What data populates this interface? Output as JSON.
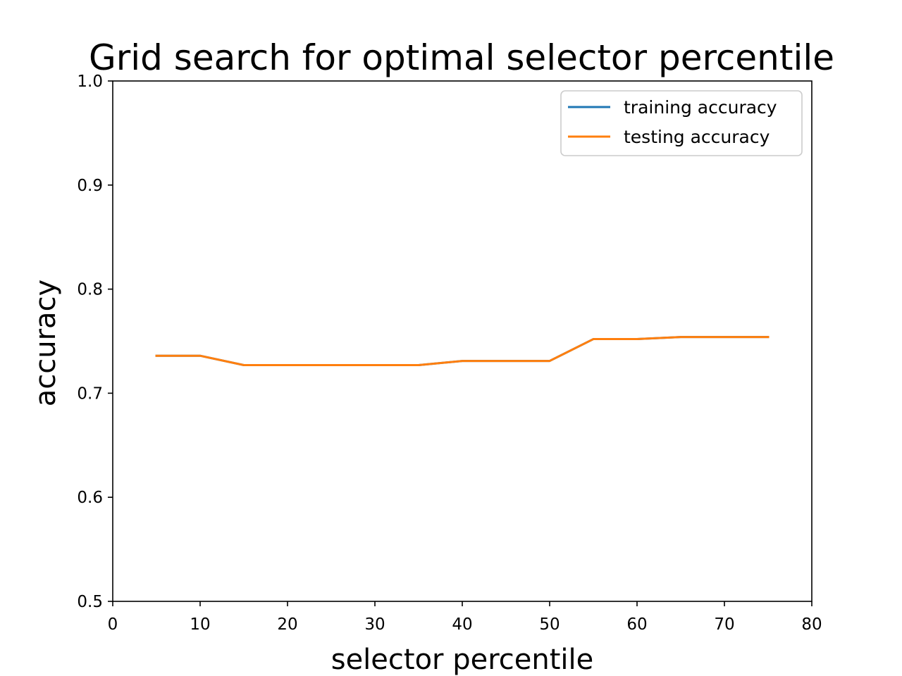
{
  "chart_data": {
    "type": "line",
    "title": "Grid search for optimal selector percentile",
    "xlabel": "selector percentile",
    "ylabel": "accuracy",
    "xlim": [
      0,
      80
    ],
    "ylim": [
      0.5,
      1.0
    ],
    "xticks": [
      "0",
      "10",
      "20",
      "30",
      "40",
      "50",
      "60",
      "70",
      "80"
    ],
    "yticks": [
      "0.5",
      "0.6",
      "0.7",
      "0.8",
      "0.9",
      "1.0"
    ],
    "grid": false,
    "legend_position": "top-right",
    "x": [
      5,
      10,
      15,
      20,
      25,
      30,
      35,
      40,
      45,
      50,
      55,
      60,
      65,
      70,
      75
    ],
    "series": [
      {
        "name": "training accuracy",
        "color": "#1f77b4",
        "values": [
          0.736,
          0.736,
          0.727,
          0.727,
          0.727,
          0.727,
          0.727,
          0.731,
          0.731,
          0.731,
          0.752,
          0.752,
          0.754,
          0.754,
          0.754
        ]
      },
      {
        "name": "testing accuracy",
        "color": "#ff7f0e",
        "values": [
          0.736,
          0.736,
          0.727,
          0.727,
          0.727,
          0.727,
          0.727,
          0.731,
          0.731,
          0.731,
          0.752,
          0.752,
          0.754,
          0.754,
          0.754
        ]
      }
    ]
  }
}
